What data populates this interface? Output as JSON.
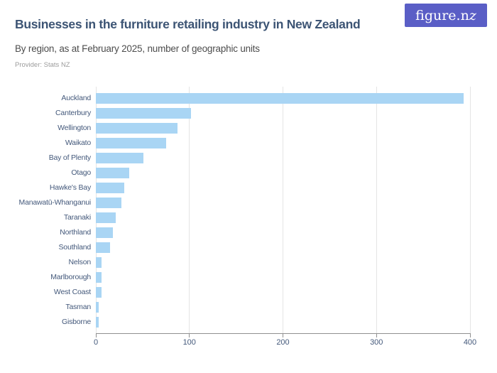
{
  "header": {
    "title": "Businesses in the furniture retailing industry in New Zealand",
    "subtitle": "By region, as at February 2025, number of geographic units",
    "provider": "Provider: Stats NZ",
    "logo_text_main": "figure.n",
    "logo_text_z": "z"
  },
  "colors": {
    "title_text": "#3c5474",
    "subtitle_text": "#4d4d4d",
    "provider_text": "#9c9c9c",
    "logo_bg": "#5a5ec6",
    "logo_text_color": "#ffffff",
    "bar_fill": "#a9d5f4",
    "grid_line": "#e4e4e4",
    "axis_line": "#909090",
    "tick_text": "#44597b",
    "label_text": "#44597b"
  },
  "chart_data": {
    "type": "bar",
    "orientation": "horizontal",
    "title": "Businesses in the furniture retailing industry in New Zealand",
    "subtitle": "By region, as at February 2025, number of geographic units",
    "provider": "Provider: Stats NZ",
    "xlabel": "",
    "ylabel": "",
    "xlim": [
      0,
      400
    ],
    "xticks": [
      0,
      100,
      200,
      300,
      400
    ],
    "grid": "vertical",
    "legend": "none",
    "categories": [
      "Auckland",
      "Canterbury",
      "Wellington",
      "Waikato",
      "Bay of Plenty",
      "Otago",
      "Hawke's Bay",
      "Manawatū-Whanganui",
      "Taranaki",
      "Northland",
      "Southland",
      "Nelson",
      "Marlborough",
      "West Coast",
      "Tasman",
      "Gisborne"
    ],
    "values": [
      393,
      102,
      87,
      75,
      51,
      36,
      30,
      27,
      21,
      18,
      15,
      6,
      6,
      6,
      3,
      3
    ]
  }
}
